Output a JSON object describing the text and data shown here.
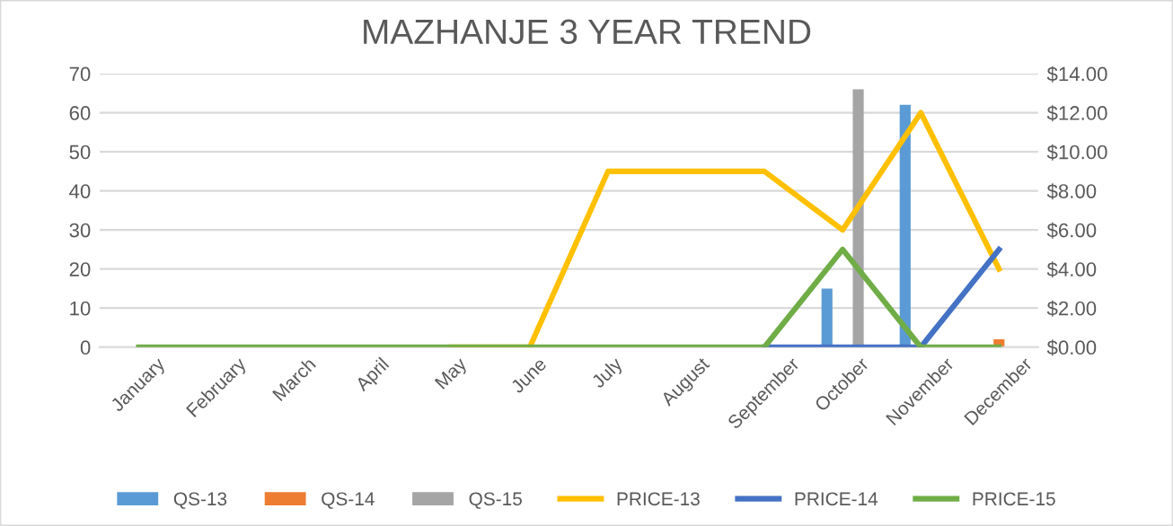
{
  "chart_data": {
    "type": "bar",
    "title": "MAZHANJE 3 YEAR TREND",
    "categories": [
      "January",
      "February",
      "March",
      "April",
      "May",
      "June",
      "July",
      "August",
      "September",
      "October",
      "November",
      "December"
    ],
    "series": [
      {
        "name": "QS-13",
        "color": "#5b9bd5",
        "values": [
          null,
          null,
          null,
          null,
          null,
          null,
          null,
          null,
          null,
          15,
          62,
          null
        ]
      },
      {
        "name": "QS-14",
        "color": "#ed7d31",
        "values": [
          null,
          null,
          null,
          null,
          null,
          null,
          null,
          null,
          null,
          null,
          null,
          2
        ]
      },
      {
        "name": "QS-15",
        "color": "#a5a5a5",
        "values": [
          null,
          null,
          null,
          null,
          null,
          null,
          null,
          null,
          null,
          66,
          null,
          null
        ]
      },
      {
        "name": "PRICE-13",
        "type": "line",
        "axis": "y2",
        "color": "#ffc000",
        "values": [
          null,
          null,
          null,
          null,
          0,
          0,
          9,
          9,
          9,
          6,
          12,
          4
        ]
      },
      {
        "name": "PRICE-14",
        "type": "line",
        "axis": "y2",
        "color": "#4472c4",
        "values": [
          null,
          null,
          null,
          null,
          null,
          null,
          null,
          null,
          0,
          0,
          0,
          5
        ]
      },
      {
        "name": "PRICE-15",
        "type": "line",
        "axis": "y2",
        "color": "#70ad47",
        "values": [
          0,
          0,
          0,
          0,
          0,
          0,
          0,
          0,
          0,
          5,
          0,
          0
        ]
      }
    ],
    "ylim": [
      0,
      70
    ],
    "yticks": [
      0,
      10,
      20,
      30,
      40,
      50,
      60,
      70
    ],
    "y2lim": [
      0,
      14
    ],
    "y2ticks": [
      {
        "value": 0,
        "label": "$0.00"
      },
      {
        "value": 2,
        "label": "$2.00"
      },
      {
        "value": 4,
        "label": "$4.00"
      },
      {
        "value": 6,
        "label": "$6.00"
      },
      {
        "value": 8,
        "label": "$8.00"
      },
      {
        "value": 10,
        "label": "$10.00"
      },
      {
        "value": 12,
        "label": "$12.00"
      },
      {
        "value": 14,
        "label": "$14.00"
      }
    ],
    "grid": "y",
    "legend": "bottom"
  }
}
